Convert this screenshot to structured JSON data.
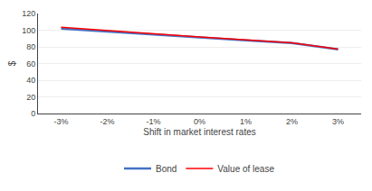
{
  "chart_data": {
    "type": "line",
    "x_label": "Shift in market interest rates",
    "y_label": "$",
    "x": [
      -3,
      -2,
      -1,
      0,
      1,
      2,
      3
    ],
    "series": [
      {
        "name": "Bond",
        "color": "#4472C4",
        "values": [
          102.0,
          98.3,
          94.7,
          91.2,
          87.8,
          84.5,
          77.0
        ]
      },
      {
        "name": "Value of lease",
        "color": "#FF0000",
        "values": [
          103.5,
          99.5,
          95.7,
          92.0,
          88.4,
          84.9,
          77.2
        ]
      }
    ],
    "xlim": [
      -3.5,
      3.5
    ],
    "xticks": [
      {
        "value": -3,
        "label": "-3%"
      },
      {
        "value": -2,
        "label": "-2%"
      },
      {
        "value": -1,
        "label": "-1%"
      },
      {
        "value": 0,
        "label": "0%"
      },
      {
        "value": 1,
        "label": "1%"
      },
      {
        "value": 2,
        "label": "2%"
      },
      {
        "value": 3,
        "label": "3%"
      }
    ],
    "ylim": [
      0,
      120
    ],
    "yticks": [
      0,
      20,
      40,
      60,
      80,
      100,
      120
    ],
    "grid": true,
    "legend": "bottom"
  }
}
